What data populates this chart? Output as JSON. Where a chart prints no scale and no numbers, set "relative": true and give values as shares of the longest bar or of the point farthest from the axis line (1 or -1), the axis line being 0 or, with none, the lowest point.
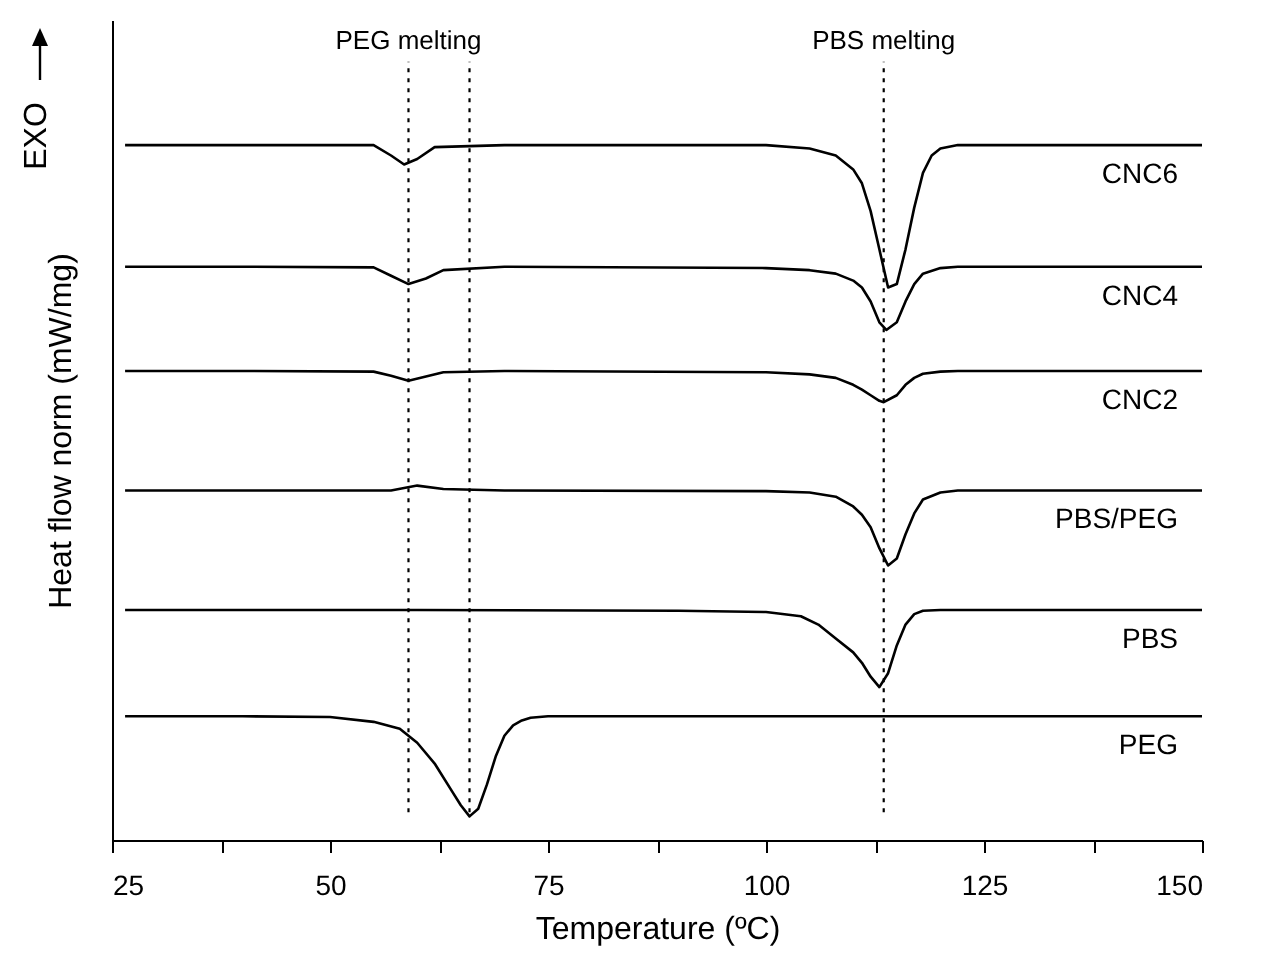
{
  "chart_data": {
    "type": "line",
    "relative": true,
    "xlabel": "Temperature (ºC)",
    "ylabel": "Heat flow norm (mW/mg)",
    "annotations": [
      "EXO"
    ],
    "xlim": [
      25,
      150
    ],
    "xticks": [
      25,
      {
        "value": 37.5,
        "label": null
      },
      50,
      {
        "value": 62.5,
        "label": null
      },
      75,
      {
        "value": 87.5,
        "label": null
      },
      100,
      {
        "value": 112.5,
        "label": null
      },
      125,
      {
        "value": 137.5,
        "label": null
      },
      150
    ],
    "grid": false,
    "marker": "none",
    "line_style": "solid",
    "ref_lines": [
      {
        "axis": "x",
        "value": 59,
        "label": "PEG melting",
        "line_style": "dotted",
        "color": "#000000"
      },
      {
        "axis": "x",
        "value": 66,
        "label": null,
        "line_style": "dotted",
        "color": "#000000"
      },
      {
        "axis": "x",
        "value": 113.5,
        "label": "PBS melting",
        "line_style": "dotted",
        "color": "#000000"
      }
    ],
    "series": [
      {
        "name": "CNC6",
        "color": "#000000",
        "x": [
          26.5,
          40,
          55,
          57,
          58.5,
          60,
          62,
          70,
          90,
          100,
          105,
          108,
          110,
          111,
          112,
          113,
          114,
          115,
          116,
          117,
          118,
          119,
          120,
          122,
          130,
          150
        ],
        "values": [
          1.0,
          1.0,
          1.0,
          0.985,
          0.972,
          0.98,
          0.997,
          1.0,
          1.0,
          1.0,
          0.995,
          0.985,
          0.965,
          0.945,
          0.905,
          0.85,
          0.795,
          0.8,
          0.85,
          0.91,
          0.96,
          0.985,
          0.995,
          1.0,
          1.0,
          1.0
        ]
      },
      {
        "name": "CNC4",
        "color": "#000000",
        "x": [
          26.5,
          40,
          55,
          57,
          59,
          61,
          63,
          70,
          100,
          105,
          108,
          110,
          111,
          112,
          113,
          113.8,
          115,
          116,
          117,
          118,
          120,
          122,
          130,
          150
        ],
        "values": [
          0.825,
          0.825,
          0.824,
          0.812,
          0.8,
          0.808,
          0.82,
          0.825,
          0.823,
          0.82,
          0.815,
          0.805,
          0.795,
          0.775,
          0.745,
          0.734,
          0.745,
          0.775,
          0.8,
          0.815,
          0.823,
          0.825,
          0.825,
          0.825
        ]
      },
      {
        "name": "CNC2",
        "color": "#000000",
        "x": [
          26.5,
          40,
          55,
          57,
          59,
          61,
          63,
          70,
          100,
          105,
          108,
          110,
          111,
          112,
          113,
          113.5,
          115,
          116,
          117,
          118,
          120,
          122,
          130,
          150
        ],
        "values": [
          0.675,
          0.675,
          0.674,
          0.668,
          0.661,
          0.667,
          0.673,
          0.675,
          0.673,
          0.67,
          0.665,
          0.655,
          0.648,
          0.64,
          0.632,
          0.63,
          0.64,
          0.655,
          0.665,
          0.671,
          0.674,
          0.675,
          0.675,
          0.675
        ]
      },
      {
        "name": "PBS/PEG",
        "color": "#000000",
        "x": [
          26.5,
          40,
          57,
          60,
          63,
          70,
          100,
          105,
          108,
          110,
          111,
          112,
          113,
          114,
          115,
          116,
          117,
          118,
          120,
          122,
          130,
          150
        ],
        "values": [
          0.503,
          0.503,
          0.503,
          0.51,
          0.505,
          0.503,
          0.502,
          0.5,
          0.494,
          0.48,
          0.468,
          0.45,
          0.42,
          0.395,
          0.405,
          0.44,
          0.47,
          0.49,
          0.5,
          0.503,
          0.503,
          0.503
        ]
      },
      {
        "name": "PBS",
        "color": "#000000",
        "x": [
          26.5,
          60,
          90,
          100,
          104,
          106,
          108,
          110,
          111,
          112,
          113,
          114,
          115,
          116,
          117,
          118,
          120,
          122,
          130,
          150
        ],
        "values": [
          0.331,
          0.331,
          0.33,
          0.328,
          0.322,
          0.31,
          0.29,
          0.27,
          0.255,
          0.235,
          0.22,
          0.24,
          0.28,
          0.31,
          0.325,
          0.33,
          0.331,
          0.331,
          0.331,
          0.331
        ]
      },
      {
        "name": "PEG",
        "color": "#000000",
        "x": [
          26.5,
          40,
          50,
          55,
          58,
          60,
          62,
          64,
          65,
          66,
          67,
          68,
          69,
          70,
          71,
          72,
          73,
          75,
          80,
          100,
          150
        ],
        "values": [
          0.178,
          0.178,
          0.177,
          0.17,
          0.16,
          0.14,
          0.11,
          0.07,
          0.05,
          0.034,
          0.045,
          0.08,
          0.12,
          0.15,
          0.165,
          0.172,
          0.176,
          0.178,
          0.178,
          0.178,
          0.178
        ]
      }
    ]
  }
}
